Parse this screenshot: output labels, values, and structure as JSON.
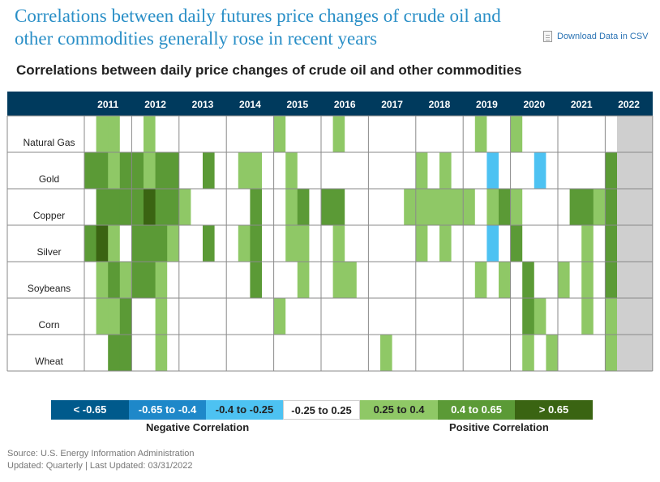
{
  "header": {
    "title": "Correlations between daily futures price changes of crude oil and other commodities generally rose in recent years",
    "csv_label": "Download Data in CSV",
    "subtitle": "Correlations between daily price changes of crude oil and other commodities"
  },
  "chart_data": {
    "type": "heatmap",
    "title": "Correlations between daily price changes of crude oil and other commodities",
    "x_labels": [
      "2011",
      "2012",
      "2013",
      "2014",
      "2015",
      "2016",
      "2017",
      "2018",
      "2019",
      "2020",
      "2021",
      "2022"
    ],
    "periods_per_year": 4,
    "period_unit": "quarter",
    "rows": [
      "Natural Gas",
      "Gold",
      "Copper",
      "Silver",
      "Soybeans",
      "Corn",
      "Wheat"
    ],
    "category_key": {
      "0": "< -0.65",
      "1": "-0.65 to -0.4",
      "2": "-0.4 to -0.25",
      "3": "-0.25 to 0.25",
      "4": "0.25 to 0.4",
      "5": "0.4 to 0.65",
      "6": "> 0.65",
      "-1": "no data"
    },
    "values": [
      [
        3,
        4,
        4,
        3,
        3,
        4,
        3,
        3,
        3,
        3,
        3,
        3,
        3,
        3,
        3,
        3,
        4,
        3,
        3,
        3,
        3,
        4,
        3,
        3,
        3,
        3,
        3,
        3,
        3,
        3,
        3,
        3,
        3,
        4,
        3,
        3,
        4,
        3,
        3,
        3,
        3,
        3,
        3,
        3,
        3,
        -1,
        -1,
        -1
      ],
      [
        5,
        5,
        4,
        5,
        5,
        4,
        5,
        5,
        3,
        3,
        5,
        3,
        3,
        4,
        4,
        3,
        3,
        4,
        3,
        3,
        3,
        3,
        3,
        3,
        3,
        3,
        3,
        3,
        4,
        3,
        4,
        3,
        3,
        3,
        2,
        3,
        3,
        3,
        2,
        3,
        3,
        3,
        3,
        3,
        5,
        -1,
        -1,
        -1
      ],
      [
        3,
        5,
        5,
        5,
        5,
        6,
        5,
        5,
        4,
        3,
        3,
        3,
        3,
        3,
        5,
        3,
        3,
        4,
        5,
        3,
        5,
        5,
        3,
        3,
        3,
        3,
        3,
        4,
        4,
        4,
        4,
        4,
        4,
        3,
        4,
        5,
        4,
        3,
        3,
        3,
        3,
        5,
        5,
        4,
        5,
        -1,
        -1,
        -1
      ],
      [
        5,
        6,
        4,
        3,
        5,
        5,
        5,
        4,
        3,
        3,
        5,
        3,
        3,
        4,
        5,
        3,
        3,
        4,
        4,
        3,
        3,
        4,
        3,
        3,
        3,
        3,
        3,
        3,
        4,
        3,
        4,
        3,
        3,
        3,
        2,
        3,
        5,
        3,
        3,
        3,
        3,
        3,
        4,
        3,
        5,
        -1,
        -1,
        -1
      ],
      [
        3,
        4,
        5,
        4,
        5,
        5,
        4,
        3,
        3,
        3,
        3,
        3,
        3,
        3,
        5,
        3,
        3,
        3,
        4,
        3,
        3,
        4,
        4,
        3,
        3,
        3,
        3,
        3,
        3,
        3,
        3,
        3,
        3,
        4,
        3,
        4,
        3,
        5,
        3,
        3,
        4,
        3,
        4,
        3,
        5,
        -1,
        -1,
        -1
      ],
      [
        3,
        4,
        4,
        5,
        3,
        3,
        4,
        3,
        3,
        3,
        3,
        3,
        3,
        3,
        3,
        3,
        4,
        3,
        3,
        3,
        3,
        3,
        3,
        3,
        3,
        3,
        3,
        3,
        3,
        3,
        3,
        3,
        3,
        3,
        3,
        3,
        3,
        5,
        4,
        3,
        3,
        3,
        4,
        3,
        4,
        -1,
        -1,
        -1
      ],
      [
        3,
        3,
        5,
        5,
        3,
        3,
        4,
        3,
        3,
        3,
        3,
        3,
        3,
        3,
        3,
        3,
        3,
        3,
        3,
        3,
        3,
        3,
        3,
        3,
        3,
        4,
        3,
        3,
        3,
        3,
        3,
        3,
        3,
        3,
        3,
        3,
        3,
        4,
        3,
        4,
        3,
        3,
        3,
        3,
        4,
        -1,
        -1,
        -1
      ]
    ],
    "legend": [
      "< -0.65",
      "-0.65 to -0.4",
      "-0.4 to -0.25",
      "-0.25 to 0.25",
      "0.25 to 0.4",
      "0.4 to 0.65",
      "> 0.65"
    ],
    "legend_captions": {
      "negative": "Negative Correlation",
      "positive": "Positive Correlation"
    }
  },
  "colors": {
    "header_bg": "#003a5d",
    "grid_line": "#8a8a8a",
    "no_data": "#cfcfcf",
    "scale": [
      "#005a8c",
      "#1e88c9",
      "#4dc2f2",
      "#ffffff",
      "#8fc866",
      "#5b9a36",
      "#3a6412"
    ],
    "legend_text": [
      "#ffffff",
      "#ffffff",
      "#222222",
      "#222222",
      "#222222",
      "#ffffff",
      "#ffffff"
    ]
  },
  "footer": {
    "source": "Source: U.S. Energy Information Administration",
    "updated": "Updated: Quarterly | Last Updated: 03/31/2022"
  }
}
